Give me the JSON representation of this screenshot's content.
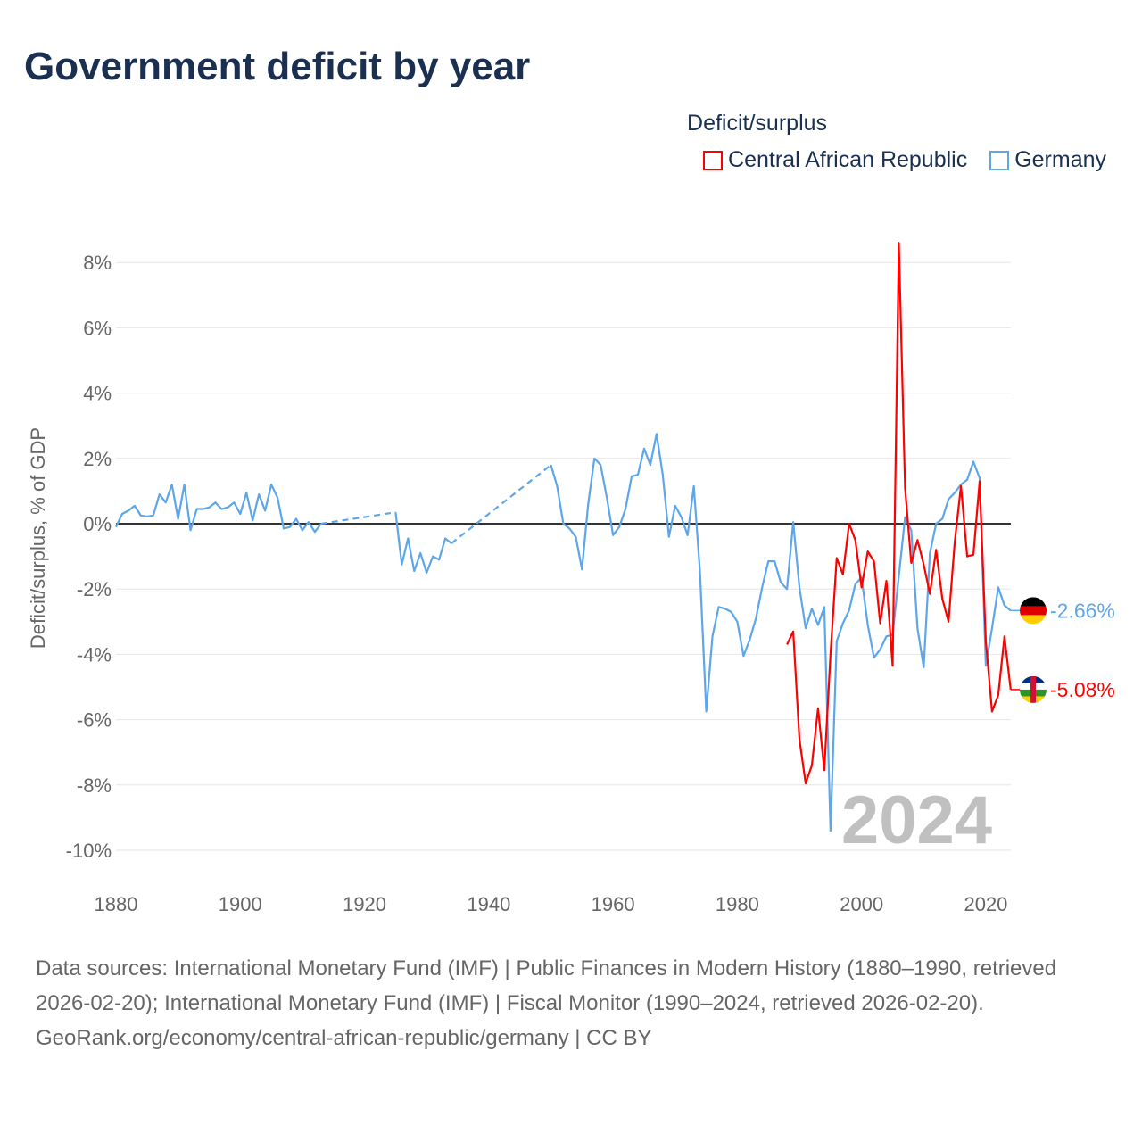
{
  "title": "Government deficit by year",
  "legend": {
    "title": "Deficit/surplus",
    "items": [
      "Central African Republic",
      "Germany"
    ]
  },
  "colors": {
    "car": "#ff0000",
    "germany": "#5ea6ea"
  },
  "footer": {
    "sources": "Data sources: International Monetary Fund (IMF) | Public Finances in Modern History (1880–1990, retrieved 2026-02-20); International Monetary Fund (IMF) | Fiscal Monitor (1990–2024, retrieved 2026-02-20).",
    "link": "GeoRank.org/economy/central-african-republic/germany | CC BY"
  },
  "chart_data": {
    "type": "line",
    "title": "Government deficit by year",
    "ylabel": "Deficit/surplus, % of GDP",
    "xlim": [
      1880,
      2024
    ],
    "ylim": [
      -10,
      8.6
    ],
    "xticks": [
      1880,
      1900,
      1920,
      1940,
      1960,
      1980,
      2000,
      2020
    ],
    "yticks": [
      -10,
      -8,
      -6,
      -4,
      -2,
      0,
      2,
      4,
      6,
      8
    ],
    "ytick_labels": [
      "-10%",
      "-8%",
      "-6%",
      "-4%",
      "-2%",
      "0%",
      "2%",
      "4%",
      "6%",
      "8%"
    ],
    "year_label": "2024",
    "series": [
      {
        "name": "Germany",
        "key": "germany",
        "start": 1880,
        "end_label": "-2.66%",
        "values": [
          -0.1,
          0.3,
          0.4,
          0.55,
          0.25,
          0.22,
          0.25,
          0.9,
          0.65,
          1.2,
          0.15,
          1.2,
          -0.2,
          0.45,
          0.45,
          0.5,
          0.65,
          0.45,
          0.5,
          0.65,
          0.3,
          0.95,
          0.1,
          0.9,
          0.4,
          1.2,
          0.8,
          -0.15,
          -0.1,
          0.15,
          -0.2,
          0.05,
          -0.25,
          0,
          null,
          null,
          null,
          null,
          null,
          null,
          null,
          null,
          null,
          null,
          null,
          0.35,
          -1.25,
          -0.45,
          -1.45,
          -0.9,
          -1.5,
          -1.0,
          -1.1,
          -0.45,
          -0.6,
          null,
          null,
          null,
          null,
          null,
          null,
          null,
          null,
          null,
          null,
          null,
          null,
          null,
          null,
          null,
          1.8,
          1.15,
          0.0,
          -0.15,
          -0.4,
          -1.4,
          0.6,
          2.0,
          1.8,
          0.8,
          -0.35,
          -0.1,
          0.45,
          1.45,
          1.5,
          2.3,
          1.8,
          2.75,
          1.5,
          -0.4,
          0.55,
          0.2,
          -0.35,
          1.15,
          -1.5,
          -5.75,
          -3.45,
          -2.55,
          -2.6,
          -2.7,
          -3.0,
          -4.05,
          -3.55,
          -2.9,
          -1.95,
          -1.15,
          -1.15,
          -1.8,
          -2.0,
          0.05,
          -1.95,
          -3.2,
          -2.6,
          -3.1,
          -2.55,
          -9.4,
          -3.6,
          -3.05,
          -2.65,
          -1.85,
          -1.65,
          -3.1,
          -4.1,
          -3.85,
          -3.45,
          -3.4,
          -1.6,
          0.2,
          -0.2,
          -3.2,
          -4.4,
          -0.9,
          0.0,
          0.15,
          0.75,
          0.95,
          1.2,
          1.35,
          1.9,
          1.4,
          -4.35,
          -3.2,
          -1.95,
          -2.5,
          -2.66
        ]
      },
      {
        "name": "Central African Republic",
        "key": "car",
        "start": 1988,
        "end_label": "-5.08%",
        "values": [
          -3.7,
          -3.3,
          -6.6,
          -7.95,
          -7.4,
          -5.65,
          -7.55,
          -4.0,
          -1.05,
          -1.55,
          0.0,
          -0.5,
          -1.95,
          -0.85,
          -1.15,
          -3.05,
          -1.75,
          -4.35,
          8.6,
          1.1,
          -1.2,
          -0.5,
          -1.25,
          -2.15,
          -0.8,
          -2.3,
          -3.0,
          -0.55,
          1.15,
          -1.0,
          -0.95,
          1.3,
          -3.6,
          -5.75,
          -5.25,
          -3.45,
          -5.08
        ]
      }
    ]
  }
}
